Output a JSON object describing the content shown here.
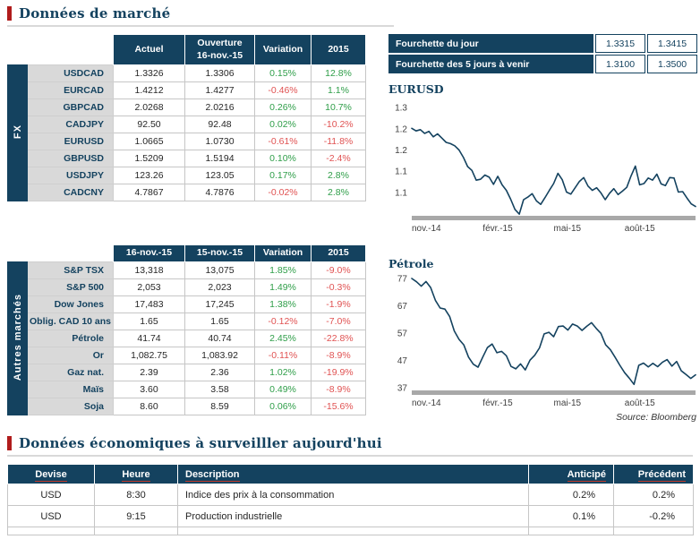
{
  "colors": {
    "navy": "#14425f",
    "heading_accent_red": "#b01c1c",
    "positive": "#2f9e49",
    "negative": "#e05252",
    "label_bg": "#d9d9d9",
    "axis_gray": "#a8a8a8"
  },
  "headings": {
    "market": "Données de marché",
    "economic": "Données économiques à surveilller aujourd'hui"
  },
  "fx_table": {
    "side_label": "FX",
    "headers": {
      "actuel": "Actuel",
      "ouverture_line1": "Ouverture",
      "ouverture_line2": "16-nov.-15",
      "variation": "Variation",
      "ytd": "2015"
    },
    "rows": [
      {
        "label": "USDCAD",
        "actuel": "1.3326",
        "ouverture": "1.3306",
        "variation": "0.15%",
        "ytd": "12.8%"
      },
      {
        "label": "EURCAD",
        "actuel": "1.4212",
        "ouverture": "1.4277",
        "variation": "-0.46%",
        "ytd": "1.1%"
      },
      {
        "label": "GBPCAD",
        "actuel": "2.0268",
        "ouverture": "2.0216",
        "variation": "0.26%",
        "ytd": "10.7%"
      },
      {
        "label": "CADJPY",
        "actuel": "92.50",
        "ouverture": "92.48",
        "variation": "0.02%",
        "ytd": "-10.2%"
      },
      {
        "label": "EURUSD",
        "actuel": "1.0665",
        "ouverture": "1.0730",
        "variation": "-0.61%",
        "ytd": "-11.8%"
      },
      {
        "label": "GBPUSD",
        "actuel": "1.5209",
        "ouverture": "1.5194",
        "variation": "0.10%",
        "ytd": "-2.4%"
      },
      {
        "label": "USDJPY",
        "actuel": "123.26",
        "ouverture": "123.05",
        "variation": "0.17%",
        "ytd": "2.8%"
      },
      {
        "label": "CADCNY",
        "actuel": "4.7867",
        "ouverture": "4.7876",
        "variation": "-0.02%",
        "ytd": "2.8%"
      }
    ]
  },
  "autres_table": {
    "side_label": "Autres marchés",
    "headers": {
      "col1": "16-nov.-15",
      "col2": "15-nov.-15",
      "variation": "Variation",
      "ytd": "2015"
    },
    "rows": [
      {
        "label": "S&P TSX",
        "col1": "13,318",
        "col2": "13,075",
        "variation": "1.85%",
        "ytd": "-9.0%"
      },
      {
        "label": "S&P 500",
        "col1": "2,053",
        "col2": "2,023",
        "variation": "1.49%",
        "ytd": "-0.3%"
      },
      {
        "label": "Dow Jones",
        "col1": "17,483",
        "col2": "17,245",
        "variation": "1.38%",
        "ytd": "-1.9%"
      },
      {
        "label": "Oblig. CAD 10 ans",
        "col1": "1.65",
        "col2": "1.65",
        "variation": "-0.12%",
        "ytd": "-7.0%"
      },
      {
        "label": "Pétrole",
        "col1": "41.74",
        "col2": "40.74",
        "variation": "2.45%",
        "ytd": "-22.8%"
      },
      {
        "label": "Or",
        "col1": "1,082.75",
        "col2": "1,083.92",
        "variation": "-0.11%",
        "ytd": "-8.9%"
      },
      {
        "label": "Gaz nat.",
        "col1": "2.39",
        "col2": "2.36",
        "variation": "1.02%",
        "ytd": "-19.9%"
      },
      {
        "label": "Maïs",
        "col1": "3.60",
        "col2": "3.58",
        "variation": "0.49%",
        "ytd": "-8.9%"
      },
      {
        "label": "Soja",
        "col1": "8.60",
        "col2": "8.59",
        "variation": "0.06%",
        "ytd": "-15.6%"
      }
    ]
  },
  "fourchette": {
    "rows": [
      {
        "label": "Fourchette du jour",
        "low": "1.3315",
        "high": "1.3415"
      },
      {
        "label": "Fourchette des 5 jours à venir",
        "low": "1.3100",
        "high": "1.3500"
      }
    ]
  },
  "source_note": "Source: Bloomberg",
  "chart_data": [
    {
      "type": "line",
      "title": "EURUSD",
      "x_tick_labels": [
        "nov.-14",
        "févr.-15",
        "mai-15",
        "août-15"
      ],
      "x_tick_positions": [
        0,
        0.25,
        0.5,
        0.75
      ],
      "y_ticks": [
        {
          "v": 1.3,
          "label": "1.3"
        },
        {
          "v": 1.25,
          "label": "1.2"
        },
        {
          "v": 1.2,
          "label": "1.2"
        },
        {
          "v": 1.15,
          "label": "1.1"
        },
        {
          "v": 1.1,
          "label": "1.1"
        }
      ],
      "ylim": [
        1.045,
        1.315
      ],
      "grid": false,
      "legend": false,
      "line_color": "#14425f",
      "values": [
        1.251,
        1.245,
        1.248,
        1.239,
        1.244,
        1.231,
        1.238,
        1.228,
        1.218,
        1.215,
        1.21,
        1.2,
        1.183,
        1.161,
        1.152,
        1.129,
        1.131,
        1.141,
        1.136,
        1.119,
        1.138,
        1.118,
        1.105,
        1.084,
        1.06,
        1.049,
        1.083,
        1.089,
        1.097,
        1.08,
        1.072,
        1.088,
        1.105,
        1.121,
        1.145,
        1.13,
        1.101,
        1.096,
        1.111,
        1.126,
        1.135,
        1.115,
        1.105,
        1.111,
        1.099,
        1.083,
        1.098,
        1.109,
        1.095,
        1.103,
        1.112,
        1.139,
        1.162,
        1.118,
        1.121,
        1.134,
        1.129,
        1.143,
        1.12,
        1.116,
        1.135,
        1.134,
        1.101,
        1.102,
        1.087,
        1.073,
        1.067
      ]
    },
    {
      "type": "line",
      "title": "Pétrole",
      "x_tick_labels": [
        "nov.-14",
        "févr.-15",
        "mai-15",
        "août-15"
      ],
      "x_tick_positions": [
        0,
        0.25,
        0.5,
        0.75
      ],
      "y_ticks": [
        {
          "v": 77,
          "label": "77"
        },
        {
          "v": 67,
          "label": "67"
        },
        {
          "v": 57,
          "label": "57"
        },
        {
          "v": 47,
          "label": "47"
        },
        {
          "v": 37,
          "label": "37"
        }
      ],
      "ylim": [
        36,
        78
      ],
      "grid": false,
      "legend": false,
      "line_color": "#14425f",
      "values": [
        77.0,
        75.8,
        74.2,
        75.9,
        73.7,
        69.0,
        66.2,
        65.8,
        63.1,
        57.8,
        54.7,
        52.7,
        48.2,
        45.6,
        44.5,
        48.2,
        51.7,
        53.0,
        49.8,
        50.3,
        48.7,
        44.8,
        43.9,
        45.7,
        43.5,
        47.1,
        48.9,
        51.6,
        56.7,
        57.3,
        55.7,
        59.4,
        59.6,
        58.1,
        60.3,
        59.6,
        58.0,
        59.5,
        60.8,
        58.7,
        56.9,
        52.7,
        50.9,
        48.1,
        45.2,
        42.5,
        40.5,
        38.2,
        45.2,
        46.0,
        44.6,
        45.9,
        44.7,
        46.3,
        47.3,
        44.9,
        46.6,
        43.2,
        41.8,
        40.4,
        41.7
      ]
    }
  ],
  "econ_table": {
    "headers": {
      "devise": "Devise",
      "heure": "Heure",
      "description": "Description",
      "anticipe": "Anticipé",
      "precedent": "Précédent"
    },
    "rows": [
      {
        "devise": "USD",
        "heure": "8:30",
        "description": "Indice des prix à la consommation",
        "anticipe": "0.2%",
        "precedent": "0.2%"
      },
      {
        "devise": "USD",
        "heure": "9:15",
        "description": "Production industrielle",
        "anticipe": "0.1%",
        "precedent": "-0.2%"
      }
    ]
  }
}
